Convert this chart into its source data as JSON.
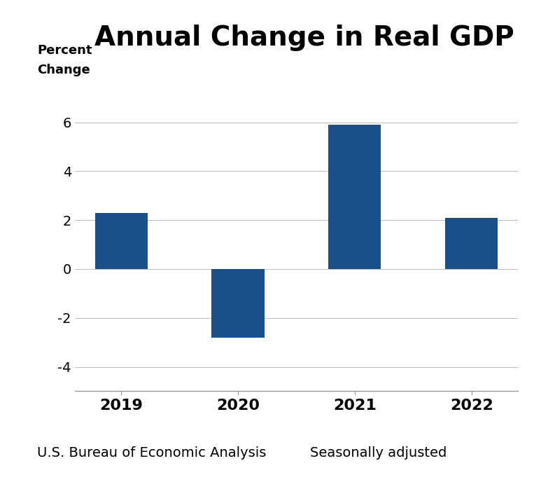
{
  "title": "Annual Change in Real GDP",
  "ylabel_line1": "Percent",
  "ylabel_line2": "Change",
  "categories": [
    "2019",
    "2020",
    "2021",
    "2022"
  ],
  "values": [
    2.3,
    -2.8,
    5.9,
    2.1
  ],
  "bar_color": "#1B4F8A",
  "ylim": [
    -5,
    7
  ],
  "yticks": [
    -4,
    -2,
    0,
    2,
    4,
    6
  ],
  "footnote_left": "U.S. Bureau of Economic Analysis",
  "footnote_right": "Seasonally adjusted",
  "title_fontsize": 28,
  "ylabel_fontsize": 13,
  "xtick_fontsize": 16,
  "ytick_fontsize": 14,
  "footnote_fontsize": 14,
  "background_color": "#ffffff"
}
